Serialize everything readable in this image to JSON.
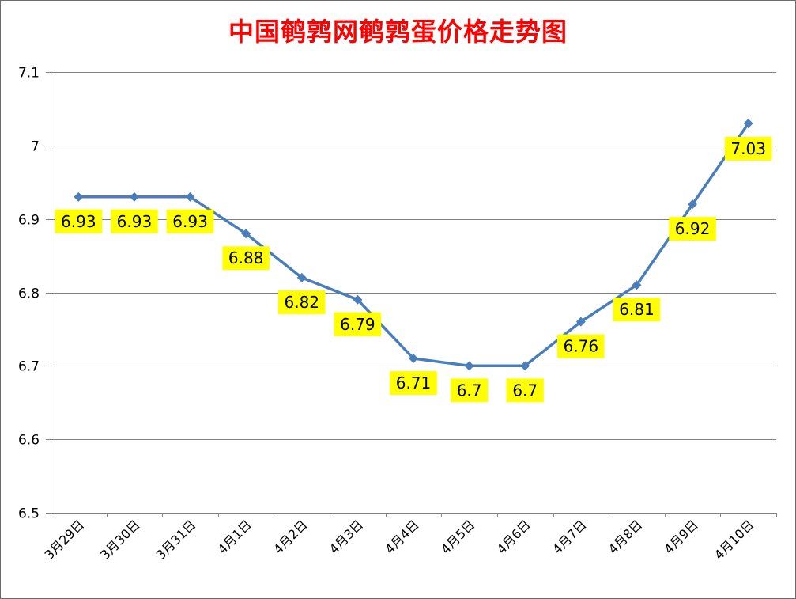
{
  "chart_data": {
    "type": "line",
    "title": "中国鹌鹑网鹌鹑蛋价格走势图",
    "xlabel": "",
    "ylabel": "",
    "ylim": [
      6.5,
      7.1
    ],
    "y_ticks": [
      "6.5",
      "6.6",
      "6.7",
      "6.8",
      "6.9",
      "7",
      "7.1"
    ],
    "categories": [
      "3月29日",
      "3月30日",
      "3月31日",
      "4月1日",
      "4月2日",
      "4月3日",
      "4月4日",
      "4月5日",
      "4月6日",
      "4月7日",
      "4月8日",
      "4月9日",
      "4月10日"
    ],
    "series": [
      {
        "values": [
          6.93,
          6.93,
          6.93,
          6.88,
          6.82,
          6.79,
          6.71,
          6.7,
          6.7,
          6.76,
          6.81,
          6.92,
          7.03
        ],
        "data_labels": [
          "6.93",
          "6.93",
          "6.93",
          "6.88",
          "6.82",
          "6.79",
          "6.71",
          "6.7",
          "6.7",
          "6.76",
          "6.81",
          "6.92",
          "7.03"
        ],
        "color": "#4a7ebb",
        "marker": "diamond"
      }
    ],
    "grid": true,
    "legend": "none",
    "colors": {
      "title": "#ff0000",
      "line": "#4a7ebb",
      "label_bg": "#ffff00",
      "grid": "#808080"
    }
  }
}
